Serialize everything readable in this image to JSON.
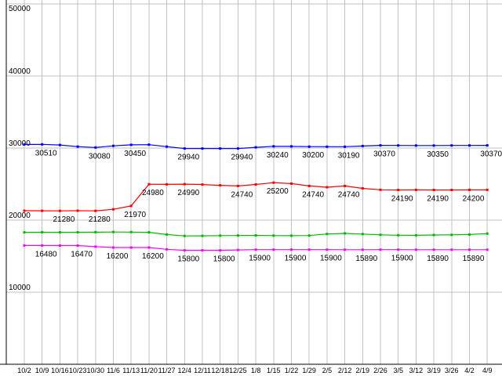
{
  "chart_data": {
    "type": "line",
    "title": "",
    "xlabel": "",
    "ylabel": "",
    "ylim": [
      0,
      50000
    ],
    "y_ticks": [
      10000,
      20000,
      30000,
      40000,
      50000
    ],
    "grid": true,
    "legend": "none",
    "x_labels": [
      "10/2",
      "10/9",
      "10/16",
      "10/23",
      "10/30",
      "11/6",
      "11/13",
      "11/20",
      "11/27",
      "12/4",
      "12/11",
      "12/18",
      "12/25",
      "1/8",
      "1/15",
      "1/22",
      "1/29",
      "2/5",
      "2/12",
      "2/19",
      "2/26",
      "3/5",
      "3/12",
      "3/19",
      "3/26",
      "4/2",
      "4/9"
    ],
    "series": [
      {
        "name": "blue-series",
        "color": "#0000ff",
        "values": [
          30500,
          30510,
          30420,
          30200,
          30080,
          30300,
          30450,
          30470,
          30200,
          29940,
          29930,
          29940,
          29940,
          30100,
          30240,
          30230,
          30200,
          30190,
          30190,
          30280,
          30370,
          30360,
          30350,
          30350,
          30360,
          30360,
          30370
        ],
        "point_labels": [
          {
            "index": 1,
            "text": "30510"
          },
          {
            "index": 4,
            "text": "30080"
          },
          {
            "index": 6,
            "text": "30450"
          },
          {
            "index": 9,
            "text": "29940"
          },
          {
            "index": 12,
            "text": "29940"
          },
          {
            "index": 14,
            "text": "30240"
          },
          {
            "index": 16,
            "text": "30200"
          },
          {
            "index": 18,
            "text": "30190"
          },
          {
            "index": 20,
            "text": "30370"
          },
          {
            "index": 23,
            "text": "30350"
          },
          {
            "index": 26,
            "text": "30370"
          }
        ]
      },
      {
        "name": "red-series",
        "color": "#ff0000",
        "values": [
          21300,
          21290,
          21280,
          21300,
          21280,
          21500,
          21970,
          24980,
          24960,
          24990,
          24930,
          24830,
          24740,
          24950,
          25200,
          25060,
          24740,
          24560,
          24740,
          24400,
          24210,
          24190,
          24195,
          24190,
          24190,
          24200,
          24200
        ],
        "point_labels": [
          {
            "index": 2,
            "text": "21280"
          },
          {
            "index": 4,
            "text": "21280"
          },
          {
            "index": 6,
            "text": "21970"
          },
          {
            "index": 7,
            "text": "24980"
          },
          {
            "index": 9,
            "text": "24990"
          },
          {
            "index": 12,
            "text": "24740"
          },
          {
            "index": 14,
            "text": "25200"
          },
          {
            "index": 16,
            "text": "24740"
          },
          {
            "index": 18,
            "text": "24740"
          },
          {
            "index": 21,
            "text": "24190"
          },
          {
            "index": 23,
            "text": "24190"
          },
          {
            "index": 25,
            "text": "24200"
          }
        ]
      },
      {
        "name": "green-series",
        "color": "#00bb00",
        "values": [
          18300,
          18320,
          18300,
          18310,
          18330,
          18350,
          18340,
          18300,
          18000,
          17800,
          17820,
          17850,
          17860,
          17880,
          17850,
          17840,
          17860,
          18080,
          18150,
          18060,
          17960,
          17900,
          17890,
          17940,
          17960,
          18000,
          18130
        ],
        "point_labels": []
      },
      {
        "name": "magenta-series",
        "color": "#ff00ff",
        "values": [
          16480,
          16480,
          16470,
          16470,
          16320,
          16200,
          16200,
          16200,
          15950,
          15800,
          15800,
          15800,
          15860,
          15900,
          15900,
          15900,
          15900,
          15900,
          15895,
          15890,
          15900,
          15900,
          15895,
          15890,
          15890,
          15890,
          15890
        ],
        "point_labels": [
          {
            "index": 1,
            "text": "16480"
          },
          {
            "index": 3,
            "text": "16470"
          },
          {
            "index": 5,
            "text": "16200"
          },
          {
            "index": 7,
            "text": "16200"
          },
          {
            "index": 9,
            "text": "15800"
          },
          {
            "index": 11,
            "text": "15800"
          },
          {
            "index": 13,
            "text": "15900"
          },
          {
            "index": 15,
            "text": "15900"
          },
          {
            "index": 17,
            "text": "15900"
          },
          {
            "index": 19,
            "text": "15890"
          },
          {
            "index": 21,
            "text": "15900"
          },
          {
            "index": 23,
            "text": "15890"
          },
          {
            "index": 25,
            "text": "15890"
          }
        ]
      }
    ],
    "colors": {
      "background": "#ffffff",
      "grid": "#c0c0c0",
      "axis": "#000000",
      "text": "#000000"
    }
  }
}
